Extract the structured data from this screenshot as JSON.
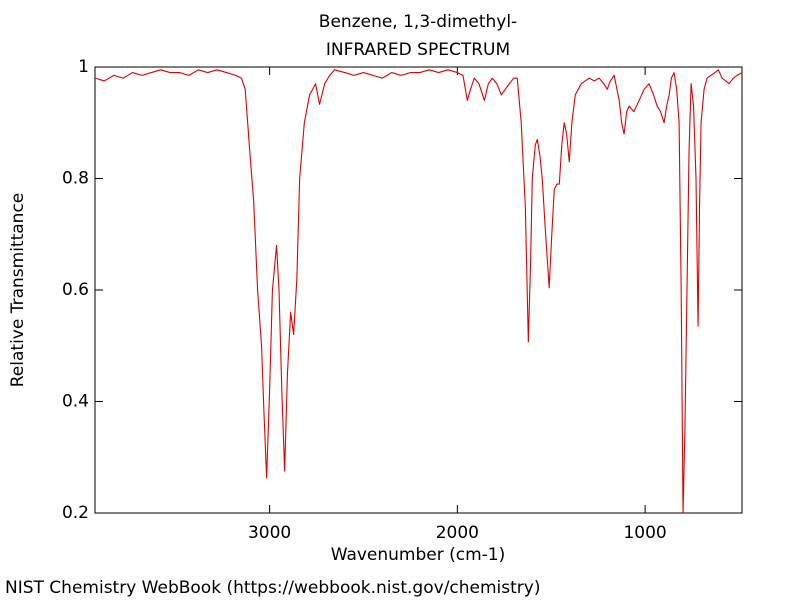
{
  "chart_data": {
    "type": "line",
    "title": "Benzene, 1,3-dimethyl-",
    "subtitle": "INFRARED SPECTRUM",
    "x_label": "Wavenumber (cm-1)",
    "y_label": "Relative Transmittance",
    "source": "NIST Chemistry WebBook (https://webbook.nist.gov/chemistry)",
    "xlim": [
      3930,
      484
    ],
    "ylim": [
      0.2,
      1
    ],
    "xticks": [
      3000,
      2000,
      1000
    ],
    "yticks": [
      0.2,
      0.4,
      0.6,
      0.8,
      1
    ],
    "x": [
      3930,
      3880,
      3830,
      3780,
      3730,
      3680,
      3630,
      3580,
      3530,
      3480,
      3430,
      3380,
      3330,
      3280,
      3230,
      3180,
      3150,
      3130,
      3106,
      3085,
      3064,
      3043,
      3030,
      3016,
      3000,
      2985,
      2963,
      2950,
      2935,
      2920,
      2905,
      2888,
      2872,
      2855,
      2840,
      2815,
      2787,
      2755,
      2734,
      2707,
      2680,
      2654,
      2600,
      2550,
      2500,
      2450,
      2400,
      2350,
      2300,
      2250,
      2200,
      2150,
      2100,
      2050,
      2000,
      1970,
      1947,
      1930,
      1910,
      1885,
      1856,
      1835,
      1814,
      1790,
      1766,
      1745,
      1723,
      1700,
      1681,
      1660,
      1638,
      1622,
      1610,
      1601,
      1585,
      1574,
      1560,
      1548,
      1530,
      1511,
      1497,
      1484,
      1470,
      1457,
      1444,
      1431,
      1418,
      1404,
      1390,
      1372,
      1340,
      1298,
      1270,
      1245,
      1220,
      1202,
      1185,
      1165,
      1150,
      1138,
      1125,
      1112,
      1098,
      1085,
      1060,
      1032,
      1005,
      979,
      955,
      936,
      918,
      899,
      885,
      872,
      860,
      846,
      832,
      819,
      808,
      798,
      788,
      777,
      766,
      755,
      742,
      729,
      718,
      710,
      702,
      686,
      670,
      650,
      628,
      610,
      590,
      570,
      553,
      530,
      510,
      484
    ],
    "series": [
      {
        "name": "Relative Transmittance",
        "color": "#e00000",
        "values": [
          0.98,
          0.975,
          0.985,
          0.98,
          0.99,
          0.985,
          0.99,
          0.995,
          0.99,
          0.99,
          0.985,
          0.995,
          0.99,
          0.995,
          0.99,
          0.985,
          0.98,
          0.96,
          0.85,
          0.76,
          0.6,
          0.5,
          0.38,
          0.263,
          0.42,
          0.6,
          0.68,
          0.6,
          0.42,
          0.275,
          0.45,
          0.56,
          0.52,
          0.62,
          0.8,
          0.9,
          0.95,
          0.97,
          0.933,
          0.97,
          0.985,
          0.995,
          0.99,
          0.985,
          0.99,
          0.985,
          0.98,
          0.99,
          0.985,
          0.99,
          0.99,
          0.995,
          0.99,
          0.995,
          0.99,
          0.985,
          0.94,
          0.96,
          0.98,
          0.97,
          0.94,
          0.97,
          0.98,
          0.97,
          0.95,
          0.96,
          0.97,
          0.98,
          0.98,
          0.9,
          0.75,
          0.507,
          0.65,
          0.8,
          0.86,
          0.87,
          0.84,
          0.8,
          0.7,
          0.604,
          0.7,
          0.78,
          0.79,
          0.79,
          0.86,
          0.9,
          0.88,
          0.83,
          0.9,
          0.95,
          0.97,
          0.98,
          0.975,
          0.98,
          0.97,
          0.96,
          0.975,
          0.985,
          0.96,
          0.94,
          0.9,
          0.88,
          0.92,
          0.93,
          0.92,
          0.94,
          0.96,
          0.97,
          0.95,
          0.93,
          0.92,
          0.9,
          0.93,
          0.95,
          0.98,
          0.99,
          0.96,
          0.9,
          0.6,
          0.2,
          0.35,
          0.6,
          0.85,
          0.97,
          0.93,
          0.8,
          0.535,
          0.75,
          0.9,
          0.96,
          0.98,
          0.985,
          0.99,
          0.995,
          0.98,
          0.975,
          0.97,
          0.98,
          0.985,
          0.99
        ]
      }
    ],
    "grid": false
  }
}
